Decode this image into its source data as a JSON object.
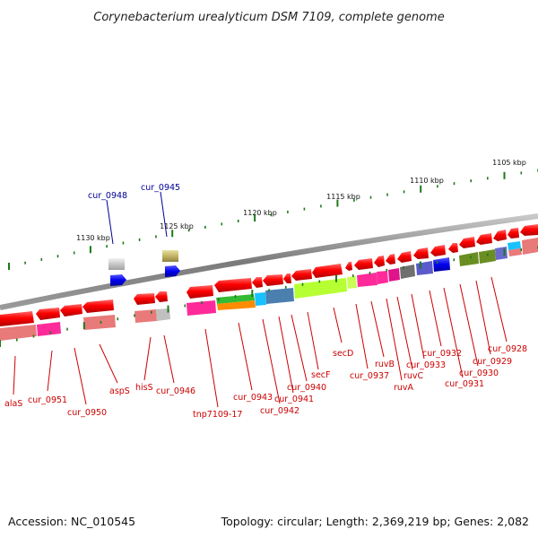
{
  "title": "Corynebacterium urealyticum DSM 7109, complete genome",
  "footer": {
    "accession": "Accession: NC_010545",
    "summary": "Topology: circular; Length: 2,369,219 bp; Genes: 2,082"
  },
  "ticks": [
    "1105 kbp",
    "1110 kbp",
    "1115 kbp",
    "1120 kbp",
    "1125 kbp",
    "1130 kbp"
  ],
  "forward_labels": [
    "cur_0948",
    "cur_0945"
  ],
  "gene_labels": [
    "alaS",
    "cur_0951",
    "cur_0950",
    "aspS",
    "hisS",
    "cur_0946",
    "tnp7109-17",
    "cur_0943",
    "cur_0942",
    "cur_0941",
    "cur_0940",
    "secF",
    "secD",
    "cur_0937",
    "ruvB",
    "ruvA",
    "ruvC",
    "cur_0933",
    "cur_0932",
    "cur_0931",
    "cur_0930",
    "cur_0929",
    "cur_0928"
  ],
  "colors": {
    "reverse_cds": "#ee0000",
    "forward_cds": "#0000ee",
    "backbone": "#808080",
    "tick_marks": "#1a7a1a",
    "label_red": "#cc0000",
    "label_blue": "#000099"
  }
}
